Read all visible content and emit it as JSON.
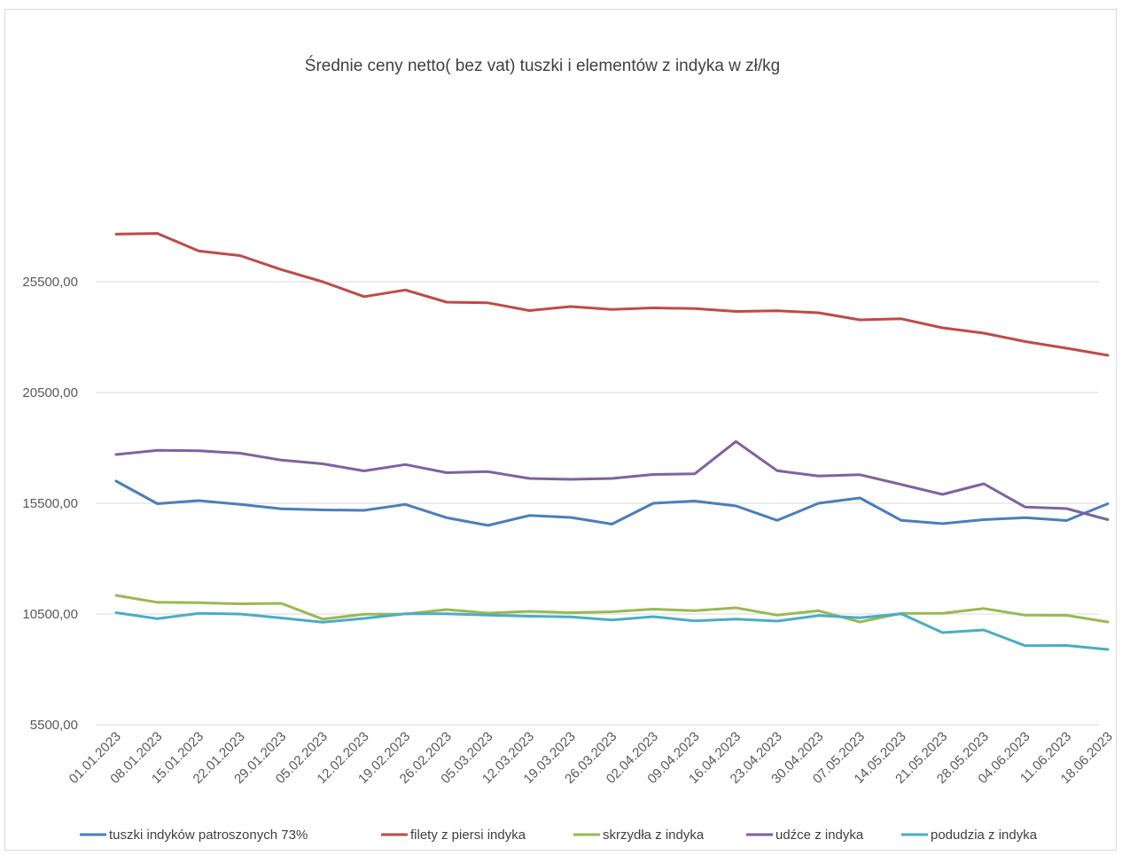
{
  "chart_data": {
    "type": "line",
    "title": "Średnie ceny netto( bez vat) tuszki i elementów z indyka w zł/kg",
    "xlabel": "",
    "ylabel": "",
    "ylim": [
      5500,
      30000
    ],
    "yticks": [
      "25500,00",
      "20500,00",
      "15500,00",
      "10500,00",
      "5500,00"
    ],
    "ytick_values": [
      25500,
      20500,
      15500,
      10500,
      5500
    ],
    "grid": true,
    "legend": "bottom",
    "categories": [
      "01.01.2023",
      "08.01.2023",
      "15.01.2023",
      "22.01.2023",
      "29.01.2023",
      "05.02.2023",
      "12.02.2023",
      "19.02.2023",
      "26.02.2023",
      "05.03.2023",
      "12.03.2023",
      "19.03.2023",
      "26.03.2023",
      "02.04.2023",
      "09.04.2023",
      "16.04.2023",
      "23.04.2023",
      "30.04.2023",
      "07.05.2023",
      "14.05.2023",
      "21.05.2023",
      "28.05.2023",
      "04.06.2023",
      "11.06.2023",
      "18.06.2023"
    ],
    "series": [
      {
        "name": "tuszki indyków patroszonych 73%",
        "color": "#4a7ebb",
        "values": [
          16500,
          15480,
          15620,
          15450,
          15250,
          15200,
          15180,
          15450,
          14850,
          14500,
          14950,
          14860,
          14560,
          15500,
          15600,
          15380,
          14730,
          15500,
          15740,
          14730,
          14580,
          14760,
          14850,
          14720,
          15480
        ]
      },
      {
        "name": "filety z piersi indyka",
        "color": "#be4b48",
        "values": [
          27650,
          27680,
          26890,
          26680,
          26050,
          25500,
          24830,
          25130,
          24580,
          24550,
          24200,
          24380,
          24250,
          24320,
          24290,
          24160,
          24190,
          24100,
          23780,
          23830,
          23420,
          23180,
          22800,
          22500,
          22180
        ]
      },
      {
        "name": "skrzydła z indyka",
        "color": "#98b954",
        "values": [
          11340,
          11030,
          11010,
          10960,
          10980,
          10270,
          10490,
          10500,
          10700,
          10540,
          10620,
          10560,
          10600,
          10720,
          10650,
          10780,
          10450,
          10650,
          10140,
          10530,
          10530,
          10750,
          10450,
          10440,
          10140
        ]
      },
      {
        "name": "udźce z indyka",
        "color": "#7e62a1",
        "values": [
          17700,
          17890,
          17870,
          17760,
          17450,
          17280,
          16960,
          17250,
          16880,
          16930,
          16620,
          16580,
          16620,
          16800,
          16830,
          18290,
          16970,
          16730,
          16790,
          16350,
          15900,
          16380,
          15330,
          15260,
          14760
        ]
      },
      {
        "name": "podudzia z indyka",
        "color": "#4bacc6",
        "values": [
          10560,
          10290,
          10530,
          10500,
          10320,
          10130,
          10300,
          10510,
          10510,
          10450,
          10400,
          10370,
          10230,
          10380,
          10190,
          10270,
          10180,
          10430,
          10330,
          10510,
          9660,
          9780,
          9070,
          9080,
          8900
        ]
      }
    ]
  }
}
